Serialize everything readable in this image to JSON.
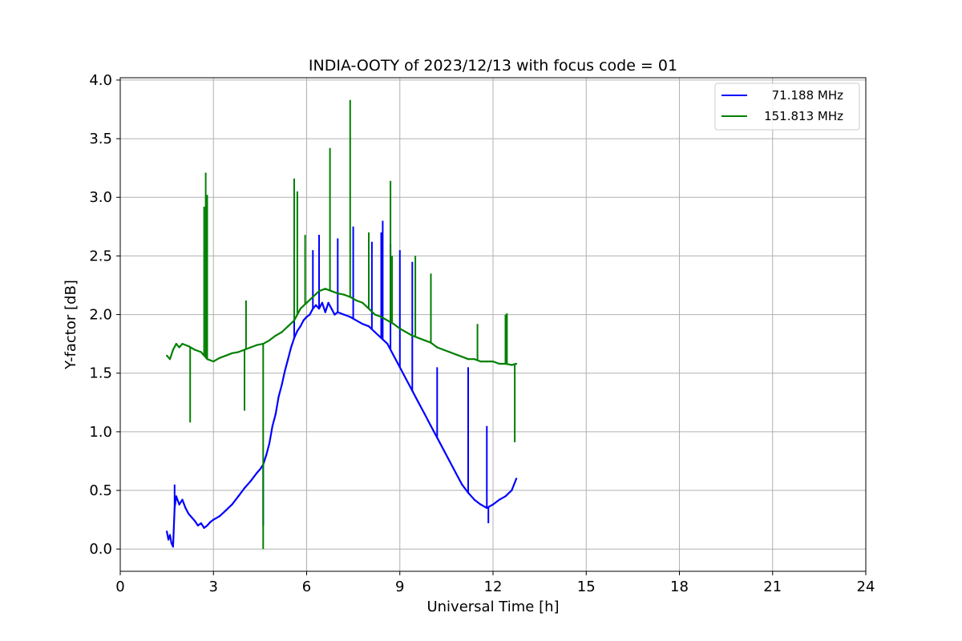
{
  "chart_data": {
    "type": "line",
    "title": "INDIA-OOTY of 2023/12/13 with focus code = 01",
    "xlabel": "Universal Time [h]",
    "ylabel": "Y-factor [dB]",
    "xlim": [
      0,
      24
    ],
    "ylim": [
      -0.19,
      4.02
    ],
    "xticks": [
      0,
      3,
      6,
      9,
      12,
      15,
      18,
      21,
      24
    ],
    "xtick_labels": [
      "0",
      "3",
      "6",
      "9",
      "12",
      "15",
      "18",
      "21",
      "24"
    ],
    "yticks": [
      0.0,
      0.5,
      1.0,
      1.5,
      2.0,
      2.5,
      3.0,
      3.5,
      4.0
    ],
    "ytick_labels": [
      "0.0",
      "0.5",
      "1.0",
      "1.5",
      "2.0",
      "2.5",
      "3.0",
      "3.5",
      "4.0"
    ],
    "grid": true,
    "legend_position": "top-right",
    "series": [
      {
        "name": "71.188 MHz",
        "color": "#0000ff",
        "x": [
          1.5,
          1.55,
          1.6,
          1.65,
          1.7,
          1.75,
          1.8,
          1.9,
          2.0,
          2.1,
          2.2,
          2.3,
          2.4,
          2.5,
          2.6,
          2.7,
          2.8,
          2.9,
          3.0,
          3.2,
          3.4,
          3.6,
          3.8,
          4.0,
          4.2,
          4.4,
          4.5,
          4.6,
          4.7,
          4.8,
          4.9,
          5.0,
          5.1,
          5.2,
          5.3,
          5.4,
          5.5,
          5.6,
          5.7,
          5.8,
          5.9,
          6.0,
          6.1,
          6.2,
          6.3,
          6.4,
          6.5,
          6.6,
          6.7,
          6.8,
          6.9,
          7.0,
          7.2,
          7.4,
          7.6,
          7.8,
          8.0,
          8.2,
          8.4,
          8.6,
          8.8,
          9.0,
          9.2,
          9.4,
          9.6,
          9.8,
          10.0,
          10.2,
          10.4,
          10.6,
          10.8,
          11.0,
          11.2,
          11.4,
          11.6,
          11.8,
          12.0,
          12.2,
          12.4,
          12.6,
          12.75
        ],
        "y": [
          0.15,
          0.08,
          0.12,
          0.05,
          0.02,
          0.35,
          0.45,
          0.38,
          0.42,
          0.35,
          0.3,
          0.27,
          0.24,
          0.2,
          0.22,
          0.18,
          0.2,
          0.23,
          0.25,
          0.28,
          0.33,
          0.38,
          0.45,
          0.52,
          0.58,
          0.65,
          0.68,
          0.72,
          0.8,
          0.9,
          1.05,
          1.15,
          1.3,
          1.4,
          1.52,
          1.62,
          1.72,
          1.8,
          1.86,
          1.9,
          1.95,
          1.98,
          2.0,
          2.05,
          2.08,
          2.05,
          2.1,
          2.02,
          2.1,
          2.05,
          2.0,
          2.02,
          2.0,
          1.98,
          1.95,
          1.92,
          1.9,
          1.85,
          1.8,
          1.75,
          1.65,
          1.55,
          1.45,
          1.35,
          1.25,
          1.15,
          1.05,
          0.95,
          0.85,
          0.75,
          0.65,
          0.55,
          0.48,
          0.42,
          0.38,
          0.35,
          0.38,
          0.42,
          0.45,
          0.5,
          0.6
        ],
        "spikes": [
          [
            1.75,
            0.55
          ],
          [
            4.6,
            0.2
          ],
          [
            5.6,
            2.35
          ],
          [
            6.2,
            2.55
          ],
          [
            6.4,
            2.68
          ],
          [
            7.0,
            2.65
          ],
          [
            7.5,
            2.75
          ],
          [
            8.1,
            2.62
          ],
          [
            8.4,
            2.7
          ],
          [
            8.45,
            2.8
          ],
          [
            8.7,
            2.6
          ],
          [
            9.0,
            2.55
          ],
          [
            9.4,
            2.45
          ],
          [
            10.2,
            1.55
          ],
          [
            11.2,
            1.55
          ],
          [
            11.8,
            1.05
          ],
          [
            11.85,
            0.22
          ]
        ]
      },
      {
        "name": "151.813 MHz",
        "color": "#008000",
        "x": [
          1.5,
          1.6,
          1.7,
          1.8,
          1.9,
          2.0,
          2.2,
          2.4,
          2.6,
          2.8,
          3.0,
          3.2,
          3.4,
          3.6,
          3.8,
          4.0,
          4.2,
          4.4,
          4.6,
          4.8,
          5.0,
          5.2,
          5.4,
          5.6,
          5.8,
          6.0,
          6.2,
          6.4,
          6.6,
          6.8,
          7.0,
          7.2,
          7.4,
          7.6,
          7.8,
          8.0,
          8.2,
          8.4,
          8.6,
          8.8,
          9.0,
          9.2,
          9.4,
          9.6,
          9.8,
          10.0,
          10.2,
          10.4,
          10.6,
          10.8,
          11.0,
          11.2,
          11.4,
          11.6,
          11.8,
          12.0,
          12.2,
          12.4,
          12.6,
          12.75
        ],
        "y": [
          1.65,
          1.62,
          1.7,
          1.75,
          1.72,
          1.75,
          1.73,
          1.7,
          1.68,
          1.62,
          1.6,
          1.63,
          1.65,
          1.67,
          1.68,
          1.7,
          1.72,
          1.74,
          1.75,
          1.78,
          1.82,
          1.85,
          1.9,
          1.95,
          2.05,
          2.1,
          2.15,
          2.2,
          2.22,
          2.2,
          2.18,
          2.17,
          2.15,
          2.12,
          2.1,
          2.05,
          2.0,
          1.98,
          1.95,
          1.92,
          1.88,
          1.85,
          1.82,
          1.8,
          1.78,
          1.76,
          1.72,
          1.7,
          1.68,
          1.66,
          1.64,
          1.62,
          1.62,
          1.6,
          1.6,
          1.6,
          1.58,
          1.58,
          1.57,
          1.58
        ],
        "spikes": [
          [
            2.25,
            1.08
          ],
          [
            2.7,
            2.92
          ],
          [
            2.75,
            3.21
          ],
          [
            2.8,
            3.02
          ],
          [
            4.0,
            1.18
          ],
          [
            4.05,
            2.12
          ],
          [
            4.6,
            0.0
          ],
          [
            5.6,
            3.16
          ],
          [
            5.7,
            3.05
          ],
          [
            5.95,
            2.68
          ],
          [
            6.75,
            3.42
          ],
          [
            7.4,
            3.83
          ],
          [
            8.0,
            2.7
          ],
          [
            8.7,
            3.14
          ],
          [
            8.75,
            2.5
          ],
          [
            9.5,
            2.5
          ],
          [
            10.0,
            2.35
          ],
          [
            11.5,
            1.92
          ],
          [
            12.4,
            2.0
          ],
          [
            12.45,
            2.01
          ],
          [
            12.7,
            0.91
          ]
        ]
      }
    ]
  }
}
